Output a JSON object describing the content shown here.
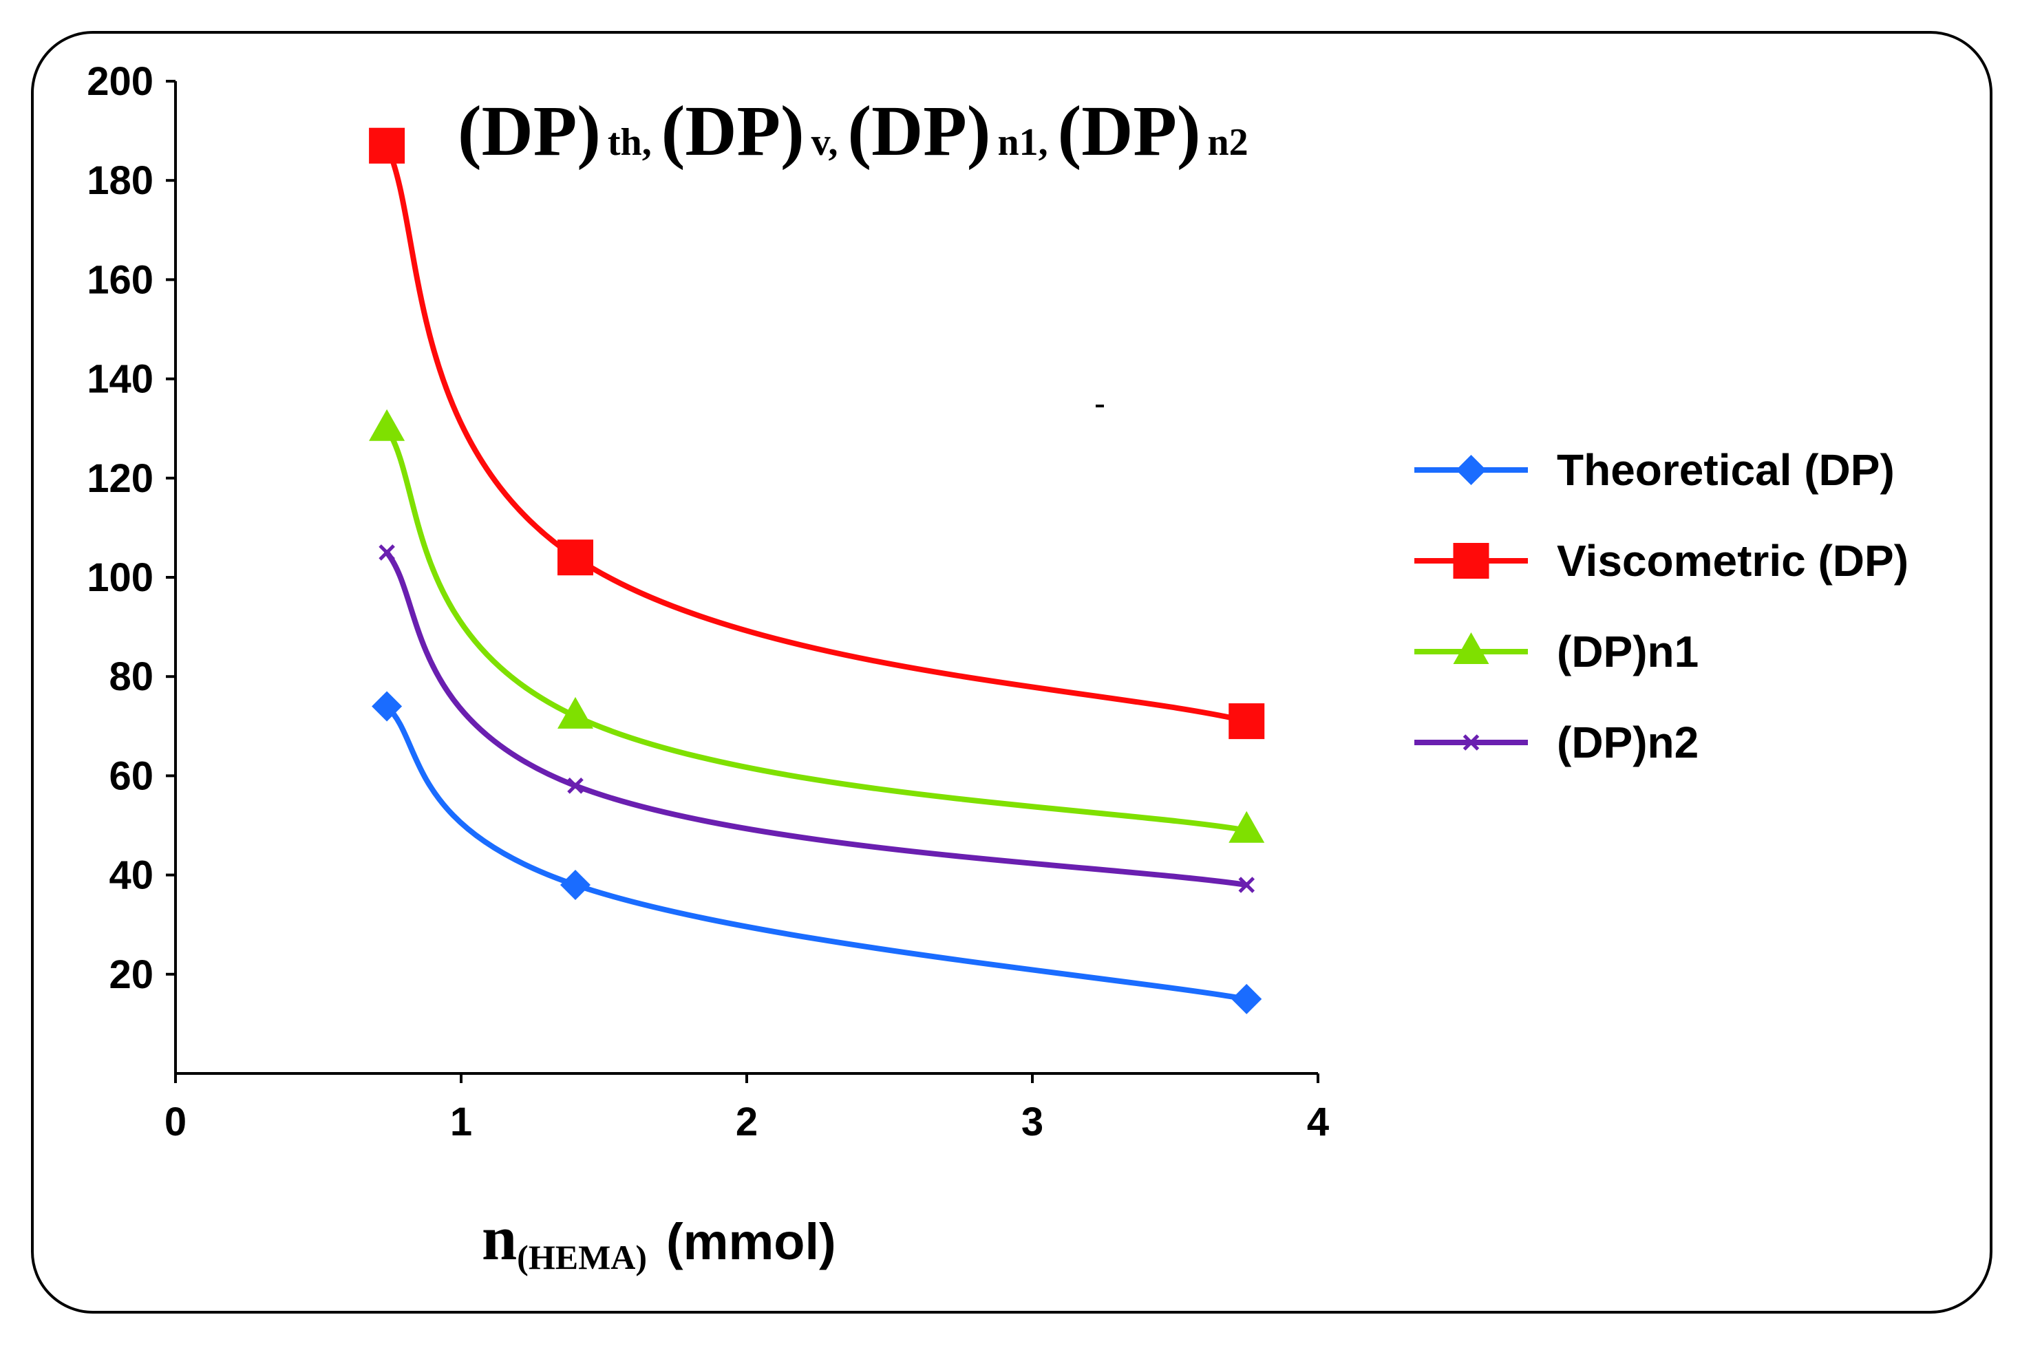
{
  "chart_data": {
    "type": "line",
    "title": {
      "parts": [
        {
          "main": "(DP)",
          "sub": "th,"
        },
        {
          "main": "(DP)",
          "sub": "v,"
        },
        {
          "main": "(DP)",
          "sub": "n1,"
        },
        {
          "main": "(DP)",
          "sub": "n2"
        }
      ]
    },
    "xlabel": {
      "main": "n",
      "sub": "(HEMA)",
      "unit": "(mmol)"
    },
    "ylabel": "",
    "xlim": [
      0,
      4
    ],
    "ylim": [
      0,
      200
    ],
    "xticks": [
      0,
      1,
      2,
      3,
      4
    ],
    "yticks": [
      20,
      40,
      60,
      80,
      100,
      120,
      140,
      160,
      180,
      200
    ],
    "grid": false,
    "legend_position": "right",
    "series": [
      {
        "name": "Theoretical (DP)",
        "color": "#1a6cff",
        "marker": "diamond",
        "x": [
          0.74,
          1.4,
          3.75
        ],
        "y": [
          74,
          38,
          15
        ]
      },
      {
        "name": "Viscometric (DP)",
        "color": "#ff0a0a",
        "marker": "square",
        "x": [
          0.74,
          1.4,
          3.75
        ],
        "y": [
          187,
          104,
          71
        ]
      },
      {
        "name": "(DP)n1",
        "color": "#7fe000",
        "marker": "triangle",
        "x": [
          0.74,
          1.4,
          3.75
        ],
        "y": [
          130,
          72,
          49
        ]
      },
      {
        "name": "(DP)n2",
        "color": "#6a1fb0",
        "marker": "cross",
        "x": [
          0.74,
          1.4,
          3.75
        ],
        "y": [
          105,
          58,
          38
        ]
      }
    ]
  }
}
